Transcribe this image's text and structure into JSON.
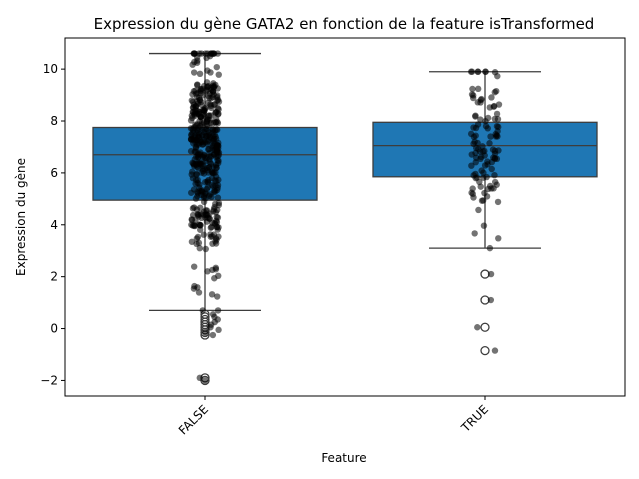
{
  "chart_data": {
    "type": "box",
    "title": "Expression du gène GATA2 en fonction de la feature isTransformed",
    "xlabel": "Feature",
    "ylabel": "Expression du gène",
    "categories": [
      "FALSE",
      "TRUE"
    ],
    "ylim": [
      -2.6,
      11.2
    ],
    "yticks": [
      -2,
      0,
      2,
      4,
      6,
      8,
      10
    ],
    "ytick_labels": [
      "−2",
      "0",
      "2",
      "4",
      "6",
      "8",
      "10"
    ],
    "box_color": "#1f77b4",
    "edge_color": "#3d3d3d",
    "jitter_color": "#000000",
    "boxes": [
      {
        "category": "FALSE",
        "whisker_low": 0.7,
        "q1": 4.95,
        "median": 6.7,
        "q3": 7.75,
        "whisker_high": 10.6,
        "outliers": [
          0.55,
          0.45,
          0.35,
          0.25,
          0.15,
          0.05,
          -0.05,
          -0.15,
          -0.25,
          -1.9,
          -2.0
        ],
        "n_points": 450
      },
      {
        "category": "TRUE",
        "whisker_low": 3.1,
        "q1": 5.85,
        "median": 7.05,
        "q3": 7.95,
        "whisker_high": 9.9,
        "outliers": [
          2.1,
          1.1,
          0.05,
          -0.85
        ],
        "n_points": 110
      }
    ]
  }
}
